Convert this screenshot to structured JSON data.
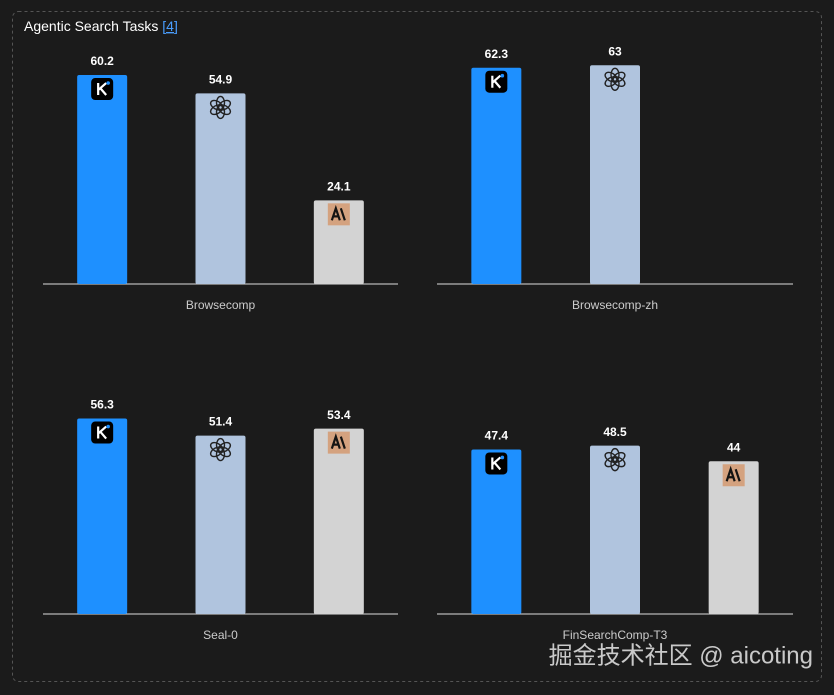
{
  "header": {
    "title": "Agentic Search Tasks",
    "reference": "[4]"
  },
  "chart_data": [
    {
      "type": "bar",
      "xlabel": "Browsecomp",
      "values": [
        60.2,
        54.9,
        24.1
      ],
      "colors": [
        "#1e90ff",
        "#b0c4de",
        "#d3d3d3"
      ],
      "ylim": [
        0,
        70
      ]
    },
    {
      "type": "bar",
      "xlabel": "Browsecomp-zh",
      "values": [
        62.3,
        63.0
      ],
      "colors": [
        "#1e90ff",
        "#b0c4de",
        "#d3d3d3"
      ],
      "ylim": [
        0,
        70
      ]
    },
    {
      "type": "bar",
      "xlabel": "Seal-0",
      "values": [
        56.3,
        51.4,
        53.4
      ],
      "colors": [
        "#1e90ff",
        "#b0c4de",
        "#d3d3d3"
      ],
      "ylim": [
        0,
        70
      ]
    },
    {
      "type": "bar",
      "xlabel": "FinSearchComp-T3",
      "values": [
        47.4,
        48.5,
        44.0
      ],
      "colors": [
        "#1e90ff",
        "#b0c4de",
        "#d3d3d3"
      ],
      "ylim": [
        0,
        70
      ]
    }
  ],
  "watermark": "掘金技术社区 @ aicoting"
}
